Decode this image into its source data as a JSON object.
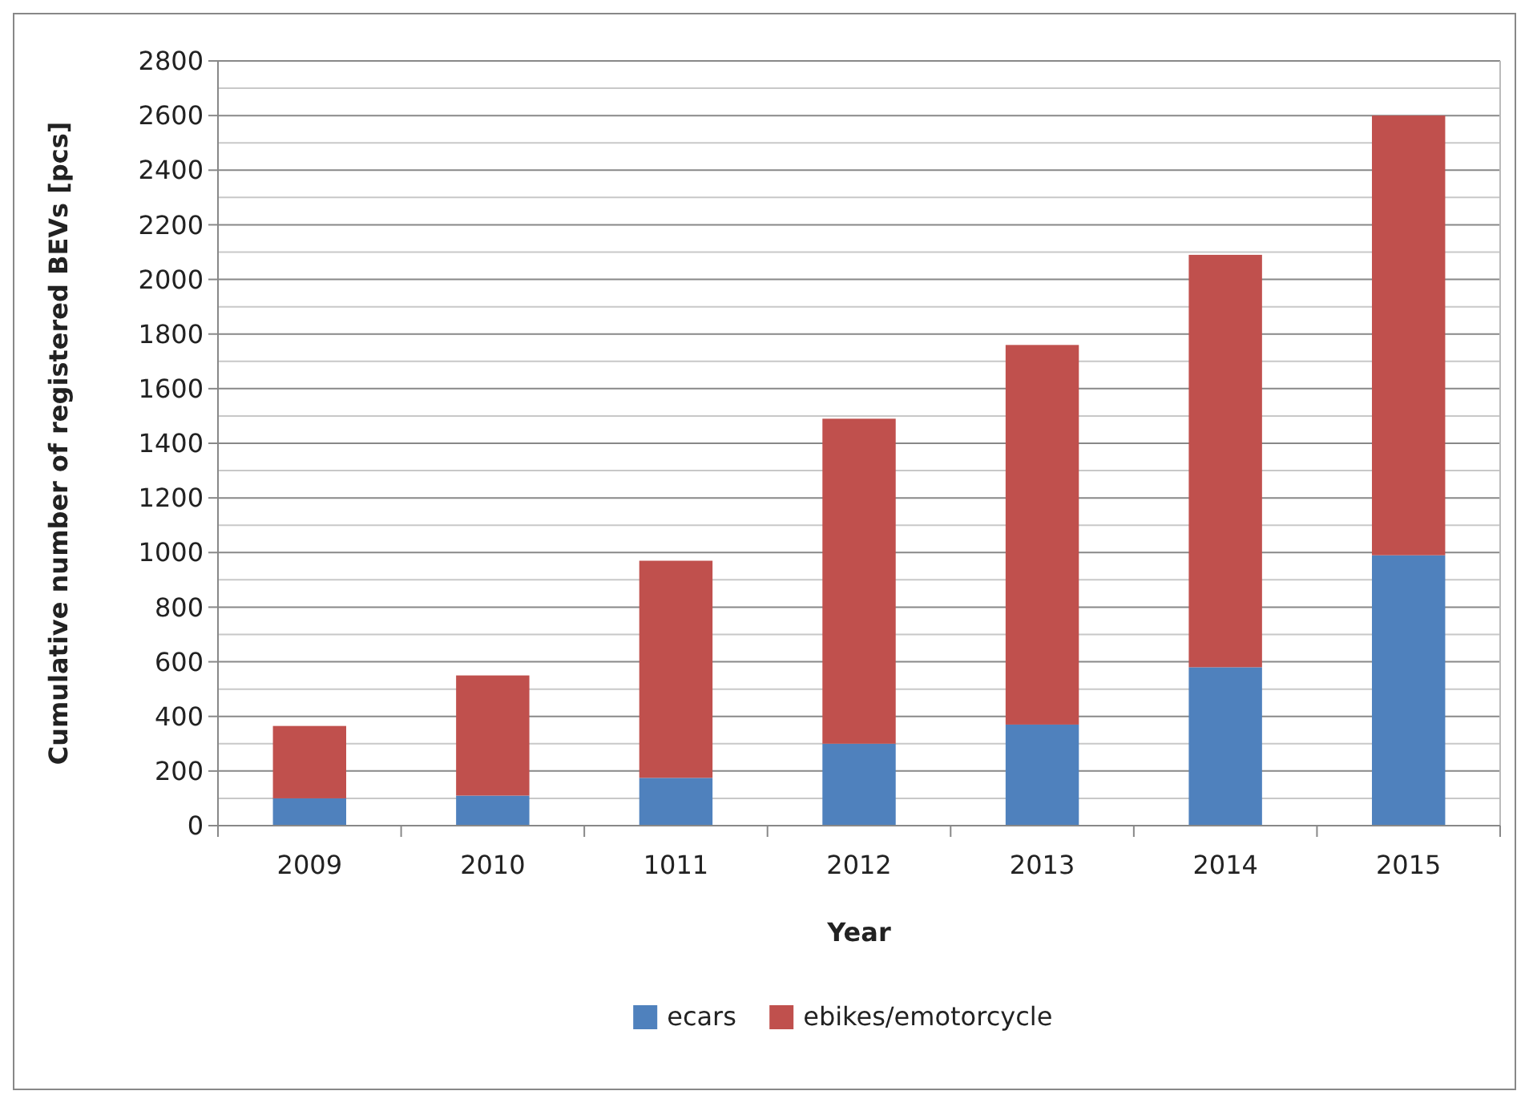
{
  "chart_data": {
    "type": "bar",
    "stacked": true,
    "xlabel": "Year",
    "ylabel": "Cumulative number of registered BEVs [pcs]",
    "categories": [
      "2009",
      "2010",
      "1011",
      "2012",
      "2013",
      "2014",
      "2015"
    ],
    "series": [
      {
        "name": "ecars",
        "color": "#4f81bd",
        "values": [
          100,
          110,
          175,
          300,
          370,
          580,
          990
        ]
      },
      {
        "name": "ebikes/emotorcycle",
        "color": "#c0504d",
        "values": [
          265,
          440,
          795,
          1190,
          1390,
          1510,
          1610
        ]
      }
    ],
    "ylim": [
      0,
      2800
    ],
    "yticks": [
      0,
      {
        "value": 100,
        "label": null
      },
      200,
      {
        "value": 300,
        "label": null
      },
      400,
      {
        "value": 500,
        "label": null
      },
      600,
      {
        "value": 700,
        "label": null
      },
      800,
      {
        "value": 900,
        "label": null
      },
      1000,
      {
        "value": 1100,
        "label": null
      },
      1200,
      {
        "value": 1300,
        "label": null
      },
      1400,
      {
        "value": 1500,
        "label": null
      },
      1600,
      {
        "value": 1700,
        "label": null
      },
      1800,
      {
        "value": 1900,
        "label": null
      },
      2000,
      {
        "value": 2100,
        "label": null
      },
      2200,
      {
        "value": 2300,
        "label": null
      },
      2400,
      {
        "value": 2500,
        "label": null
      },
      2600,
      {
        "value": 2700,
        "label": null
      },
      2800
    ],
    "grid": "y",
    "legend": "bottom"
  }
}
